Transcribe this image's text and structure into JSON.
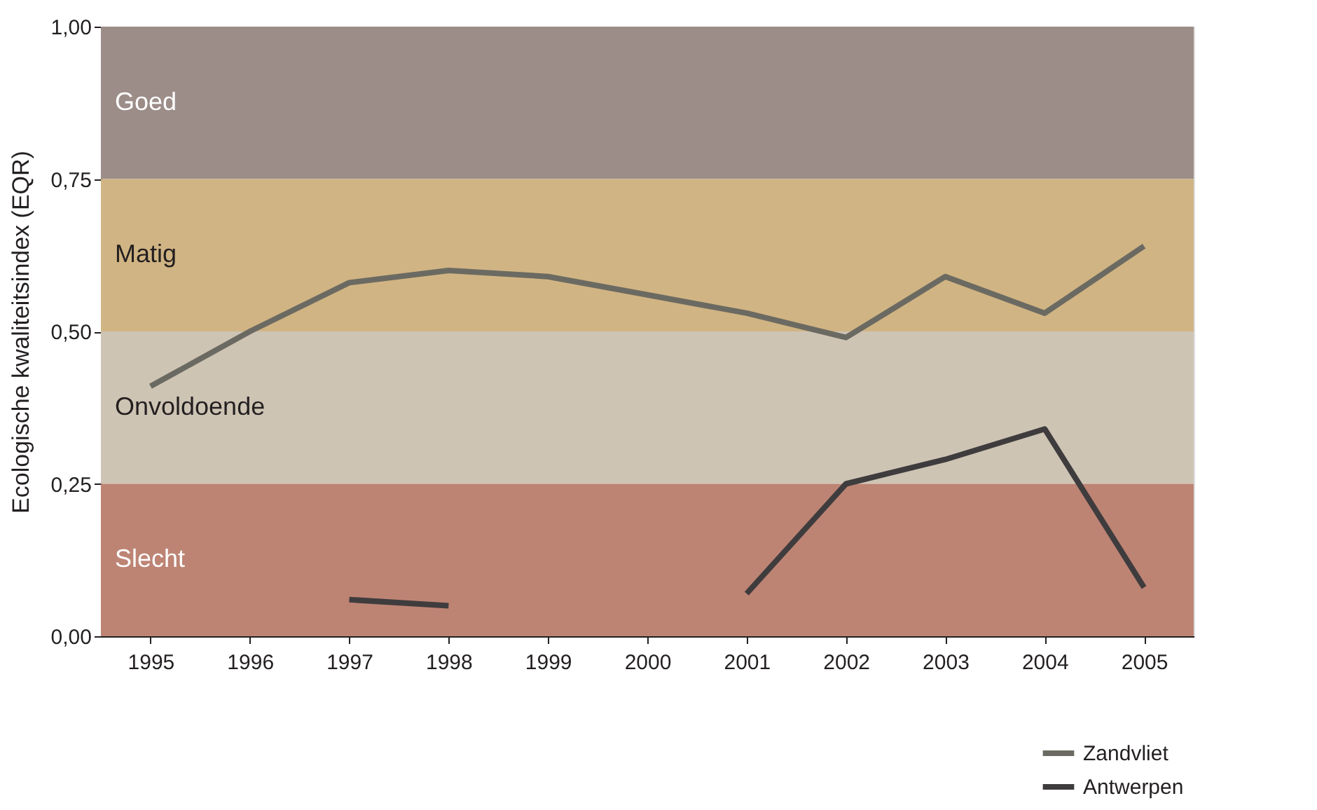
{
  "chart_data": {
    "type": "line",
    "ylabel": "Ecologische kwaliteitsindex (EQR)",
    "categories": [
      "1995",
      "1996",
      "1997",
      "1998",
      "1999",
      "2000",
      "2001",
      "2002",
      "2003",
      "2004",
      "2005"
    ],
    "series": [
      {
        "name": "Zandvliet",
        "color": "#6b6a62",
        "values": [
          0.41,
          0.5,
          0.58,
          0.6,
          0.59,
          0.56,
          0.53,
          0.49,
          0.59,
          0.53,
          0.64
        ]
      },
      {
        "name": "Antwerpen",
        "color": "#3f3c3e",
        "values": [
          null,
          null,
          0.06,
          0.05,
          null,
          null,
          0.07,
          0.25,
          0.29,
          0.34,
          0.08
        ]
      }
    ],
    "ylim": [
      0,
      1
    ],
    "yticks": [
      {
        "value": 0,
        "label": "0,00"
      },
      {
        "value": 0.25,
        "label": "0,25"
      },
      {
        "value": 0.5,
        "label": "0,50"
      },
      {
        "value": 0.75,
        "label": "0,75"
      },
      {
        "value": 1,
        "label": "1,00"
      }
    ],
    "bands": [
      {
        "axis": "y",
        "from": 0.75,
        "to": 1,
        "label": "Goed",
        "color": "#9c8d88"
      },
      {
        "axis": "y",
        "from": 0.5,
        "to": 0.75,
        "label": "Matig",
        "color": "#d0b483"
      },
      {
        "axis": "y",
        "from": 0.25,
        "to": 0.5,
        "label": "Onvoldoende",
        "color": "#cec4b4"
      },
      {
        "axis": "y",
        "from": 0,
        "to": 0.25,
        "label": "Slecht",
        "color": "#bd8474"
      }
    ],
    "grid": false,
    "legend": "bottom right",
    "marker": "none",
    "line_style": "solid"
  }
}
